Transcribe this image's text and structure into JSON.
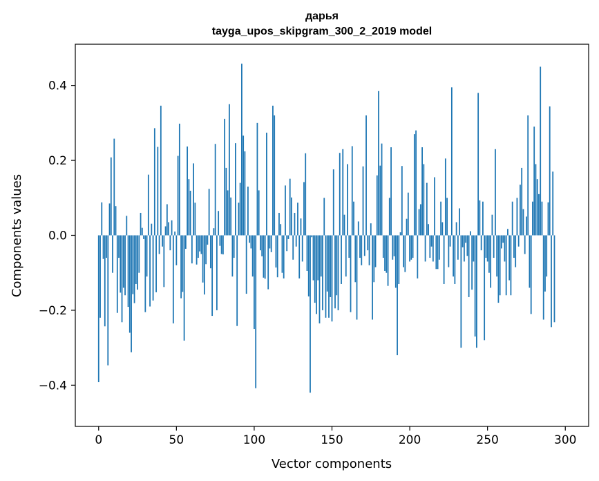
{
  "chart_data": {
    "type": "bar",
    "title": "дарья",
    "subtitle": "tayga_upos_skipgram_300_2_2019 model",
    "xlabel": "Vector components",
    "ylabel": "Components values",
    "xlim": [
      -15,
      315
    ],
    "ylim": [
      -0.51,
      0.51
    ],
    "xticks": [
      0,
      50,
      100,
      150,
      200,
      250,
      300
    ],
    "xtick_labels": [
      "0",
      "50",
      "100",
      "150",
      "200",
      "250",
      "300"
    ],
    "yticks": [
      -0.4,
      -0.2,
      0.0,
      0.2,
      0.4
    ],
    "ytick_labels": [
      "−0.4",
      "−0.2",
      "0.0",
      "0.2",
      "0.4"
    ],
    "bar_color": "#1f77b4",
    "series": [
      {
        "name": "дарья",
        "x_start": 0,
        "values": [
          -0.392,
          -0.22,
          0.088,
          -0.063,
          -0.243,
          -0.06,
          -0.347,
          0.085,
          0.208,
          -0.1,
          0.258,
          0.078,
          -0.207,
          -0.06,
          -0.153,
          -0.232,
          -0.14,
          -0.16,
          0.052,
          -0.191,
          -0.26,
          -0.312,
          -0.157,
          -0.181,
          -0.13,
          -0.145,
          -0.1,
          0.06,
          0.02,
          -0.01,
          -0.205,
          -0.11,
          0.162,
          -0.19,
          0.031,
          -0.174,
          0.286,
          -0.152,
          0.236,
          -0.05,
          0.346,
          -0.03,
          -0.138,
          0.024,
          0.083,
          0.035,
          -0.04,
          0.04,
          -0.235,
          0.01,
          -0.08,
          0.212,
          0.298,
          -0.168,
          -0.151,
          -0.281,
          -0.036,
          0.237,
          0.15,
          0.119,
          -0.075,
          0.192,
          0.087,
          -0.078,
          -0.06,
          -0.043,
          -0.05,
          -0.126,
          -0.158,
          -0.077,
          -0.025,
          0.124,
          -0.088,
          -0.215,
          0.019,
          0.244,
          -0.2,
          0.065,
          -0.028,
          -0.05,
          -0.051,
          0.311,
          0.18,
          0.12,
          0.35,
          0.101,
          -0.11,
          -0.06,
          0.246,
          -0.242,
          0.087,
          0.14,
          0.458,
          0.266,
          0.224,
          -0.156,
          0.13,
          -0.02,
          -0.035,
          -0.11,
          -0.25,
          -0.408,
          0.3,
          0.12,
          -0.04,
          -0.056,
          -0.113,
          -0.116,
          0.274,
          -0.144,
          -0.035,
          -0.045,
          0.346,
          0.32,
          -0.086,
          -0.112,
          0.06,
          0.03,
          -0.1,
          -0.115,
          0.133,
          -0.042,
          -0.01,
          0.151,
          0.101,
          -0.065,
          0.06,
          -0.03,
          0.087,
          -0.115,
          0.045,
          -0.07,
          0.142,
          0.219,
          -0.095,
          -0.163,
          -0.42,
          -0.005,
          -0.12,
          -0.18,
          -0.21,
          -0.12,
          -0.235,
          -0.11,
          -0.2,
          0.1,
          -0.22,
          -0.15,
          -0.22,
          -0.165,
          -0.23,
          0.176,
          -0.195,
          -0.16,
          -0.2,
          0.22,
          -0.13,
          0.23,
          0.055,
          -0.11,
          0.19,
          -0.06,
          -0.205,
          0.238,
          0.09,
          -0.125,
          -0.225,
          0.037,
          -0.06,
          -0.08,
          0.184,
          -0.055,
          0.32,
          -0.04,
          -0.08,
          0.032,
          -0.225,
          -0.125,
          -0.085,
          0.16,
          0.385,
          0.186,
          0.245,
          -0.06,
          -0.095,
          -0.1,
          -0.135,
          0.1,
          0.235,
          -0.065,
          -0.056,
          -0.14,
          -0.32,
          -0.13,
          0.008,
          0.185,
          -0.085,
          -0.098,
          0.044,
          0.114,
          -0.07,
          -0.065,
          -0.06,
          0.27,
          0.28,
          -0.115,
          0.07,
          0.083,
          0.235,
          0.19,
          -0.07,
          0.14,
          0.03,
          -0.06,
          -0.03,
          -0.07,
          0.155,
          -0.09,
          -0.09,
          -0.065,
          0.09,
          0.035,
          -0.13,
          0.205,
          0.1,
          -0.085,
          -0.03,
          0.395,
          -0.11,
          -0.13,
          0.035,
          -0.065,
          0.072,
          -0.3,
          -0.032,
          -0.07,
          -0.02,
          -0.055,
          -0.165,
          0.011,
          -0.145,
          -0.07,
          -0.27,
          -0.3,
          0.38,
          0.093,
          -0.04,
          0.09,
          -0.28,
          -0.06,
          -0.07,
          -0.1,
          -0.14,
          0.055,
          -0.06,
          0.23,
          -0.11,
          -0.18,
          -0.16,
          -0.035,
          -0.02,
          -0.07,
          -0.16,
          0.017,
          -0.12,
          -0.16,
          0.09,
          -0.06,
          -0.085,
          0.1,
          -0.03,
          0.135,
          0.18,
          0.07,
          -0.05,
          0.05,
          0.32,
          -0.14,
          -0.21,
          0.09,
          0.29,
          0.19,
          0.15,
          0.11,
          0.45,
          0.09,
          -0.225,
          -0.15,
          -0.11,
          0.088,
          0.344,
          -0.245,
          0.17,
          -0.232,
          0.0
        ]
      }
    ]
  }
}
